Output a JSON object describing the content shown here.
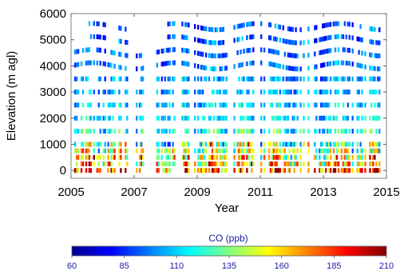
{
  "chart_data": {
    "type": "heatmap",
    "xlabel": "Year",
    "ylabel": "Elevation (m agl)",
    "xlim": [
      2005,
      2015
    ],
    "ylim": [
      -300,
      6000
    ],
    "xticks": [
      2005,
      2007,
      2009,
      2011,
      2013,
      2015
    ],
    "yticks": [
      0,
      1000,
      2000,
      3000,
      4000,
      5000,
      6000
    ],
    "grid": false,
    "colorbar": {
      "label": "CO (ppb)",
      "min": 60,
      "max": 210,
      "ticks": [
        60,
        85,
        110,
        135,
        160,
        185,
        210
      ],
      "colormap": "jet",
      "colors": [
        "#00008f",
        "#0000ff",
        "#0080ff",
        "#00ffff",
        "#80ff80",
        "#ffff00",
        "#ff8000",
        "#ff0000",
        "#800000"
      ]
    },
    "elevation_levels": [
      0,
      250,
      500,
      750,
      1000,
      1500,
      2000,
      2500,
      3000,
      3500,
      4000,
      4500,
      5000,
      5500
    ],
    "typical_co_by_level": [
      175,
      160,
      150,
      140,
      130,
      120,
      112,
      108,
      104,
      100,
      96,
      93,
      92,
      92
    ],
    "profile_gaps": [
      [
        2006.8,
        2007.0
      ],
      [
        2007.25,
        2007.65
      ],
      [
        2009.9,
        2010.1
      ],
      [
        2010.75,
        2010.95
      ]
    ]
  }
}
